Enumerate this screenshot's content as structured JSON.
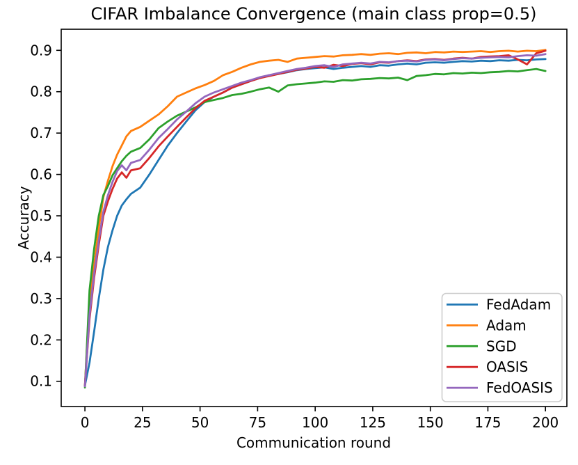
{
  "figure": {
    "title": "CIFAR Imbalance Convergence (main class prop=0.5)",
    "xlabel": "Communication round",
    "ylabel": "Accuracy"
  },
  "chart_data": {
    "type": "line",
    "title": "CIFAR Imbalance Convergence (main class prop=0.5)",
    "xlabel": "Communication round",
    "ylabel": "Accuracy",
    "xlim": [
      -10.3,
      209.3
    ],
    "ylim": [
      0.039,
      0.951
    ],
    "xticks": [
      0,
      25,
      50,
      75,
      100,
      125,
      150,
      175,
      200
    ],
    "yticks": [
      0.1,
      0.2,
      0.3,
      0.4,
      0.5,
      0.6,
      0.7,
      0.8,
      0.9
    ],
    "grid": false,
    "legend_position": "lower right",
    "x": [
      0,
      2,
      4,
      6,
      8,
      10,
      12,
      14,
      16,
      18,
      20,
      24,
      28,
      32,
      36,
      40,
      44,
      48,
      52,
      56,
      60,
      64,
      68,
      72,
      76,
      80,
      84,
      88,
      92,
      96,
      100,
      104,
      108,
      112,
      116,
      120,
      124,
      128,
      132,
      136,
      140,
      144,
      148,
      152,
      156,
      160,
      164,
      168,
      172,
      176,
      180,
      184,
      188,
      192,
      196,
      200
    ],
    "series": [
      {
        "name": "FedAdam",
        "color": "#1f77b4",
        "values": [
          0.09,
          0.145,
          0.22,
          0.3,
          0.37,
          0.425,
          0.465,
          0.5,
          0.525,
          0.54,
          0.553,
          0.568,
          0.6,
          0.635,
          0.67,
          0.7,
          0.728,
          0.755,
          0.775,
          0.788,
          0.798,
          0.81,
          0.818,
          0.826,
          0.833,
          0.84,
          0.843,
          0.847,
          0.852,
          0.855,
          0.857,
          0.859,
          0.855,
          0.858,
          0.86,
          0.862,
          0.86,
          0.864,
          0.863,
          0.866,
          0.868,
          0.866,
          0.87,
          0.871,
          0.87,
          0.872,
          0.874,
          0.873,
          0.875,
          0.874,
          0.876,
          0.875,
          0.877,
          0.876,
          0.878,
          0.879
        ]
      },
      {
        "name": "Adam",
        "color": "#ff7f0e",
        "values": [
          0.09,
          0.3,
          0.38,
          0.47,
          0.545,
          0.585,
          0.62,
          0.648,
          0.67,
          0.692,
          0.705,
          0.715,
          0.73,
          0.745,
          0.765,
          0.788,
          0.798,
          0.808,
          0.816,
          0.826,
          0.84,
          0.848,
          0.858,
          0.866,
          0.872,
          0.875,
          0.877,
          0.872,
          0.88,
          0.882,
          0.884,
          0.886,
          0.885,
          0.888,
          0.889,
          0.891,
          0.889,
          0.892,
          0.893,
          0.891,
          0.894,
          0.895,
          0.893,
          0.896,
          0.895,
          0.897,
          0.896,
          0.897,
          0.898,
          0.896,
          0.898,
          0.899,
          0.897,
          0.899,
          0.898,
          0.901
        ]
      },
      {
        "name": "SGD",
        "color": "#2ca02c",
        "values": [
          0.085,
          0.32,
          0.42,
          0.5,
          0.55,
          0.572,
          0.598,
          0.615,
          0.632,
          0.645,
          0.655,
          0.664,
          0.685,
          0.712,
          0.728,
          0.742,
          0.752,
          0.762,
          0.775,
          0.78,
          0.785,
          0.792,
          0.795,
          0.8,
          0.806,
          0.81,
          0.8,
          0.815,
          0.818,
          0.82,
          0.822,
          0.825,
          0.824,
          0.828,
          0.827,
          0.83,
          0.831,
          0.833,
          0.832,
          0.834,
          0.828,
          0.838,
          0.84,
          0.843,
          0.842,
          0.845,
          0.844,
          0.846,
          0.845,
          0.847,
          0.848,
          0.85,
          0.849,
          0.852,
          0.855,
          0.85
        ]
      },
      {
        "name": "OASIS",
        "color": "#d62728",
        "values": [
          0.09,
          0.25,
          0.35,
          0.43,
          0.5,
          0.535,
          0.565,
          0.59,
          0.605,
          0.592,
          0.61,
          0.615,
          0.64,
          0.668,
          0.692,
          0.715,
          0.738,
          0.76,
          0.778,
          0.788,
          0.798,
          0.81,
          0.818,
          0.826,
          0.833,
          0.838,
          0.843,
          0.848,
          0.853,
          0.856,
          0.86,
          0.858,
          0.865,
          0.862,
          0.867,
          0.869,
          0.866,
          0.871,
          0.87,
          0.874,
          0.876,
          0.874,
          0.878,
          0.879,
          0.877,
          0.88,
          0.882,
          0.88,
          0.884,
          0.885,
          0.886,
          0.888,
          0.878,
          0.866,
          0.893,
          0.899
        ]
      },
      {
        "name": "FedOASIS",
        "color": "#9467bd",
        "values": [
          0.088,
          0.26,
          0.36,
          0.44,
          0.51,
          0.55,
          0.582,
          0.608,
          0.622,
          0.61,
          0.628,
          0.635,
          0.66,
          0.688,
          0.71,
          0.733,
          0.752,
          0.772,
          0.788,
          0.798,
          0.806,
          0.814,
          0.822,
          0.828,
          0.835,
          0.84,
          0.845,
          0.85,
          0.855,
          0.858,
          0.862,
          0.864,
          0.86,
          0.866,
          0.868,
          0.87,
          0.868,
          0.872,
          0.871,
          0.874,
          0.875,
          0.873,
          0.877,
          0.878,
          0.876,
          0.879,
          0.881,
          0.88,
          0.882,
          0.883,
          0.884,
          0.883,
          0.886,
          0.888,
          0.887,
          0.891
        ]
      }
    ]
  }
}
